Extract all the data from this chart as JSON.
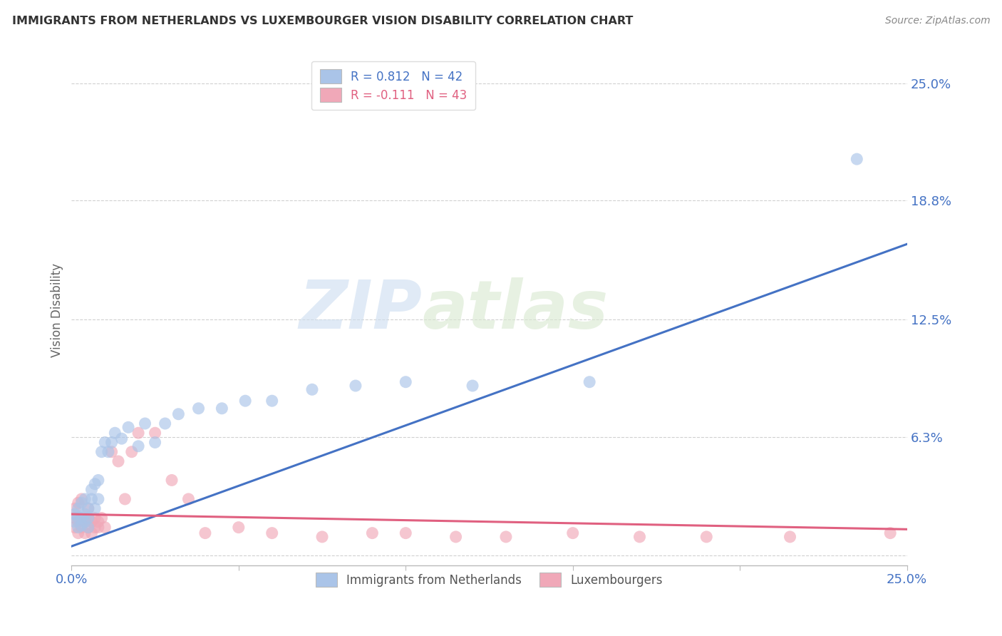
{
  "title": "IMMIGRANTS FROM NETHERLANDS VS LUXEMBOURGER VISION DISABILITY CORRELATION CHART",
  "source": "Source: ZipAtlas.com",
  "ylabel": "Vision Disability",
  "xlim": [
    0.0,
    0.25
  ],
  "ylim": [
    -0.005,
    0.265
  ],
  "legend_r1": "R = 0.812   N = 42",
  "legend_r2": "R = -0.111   N = 43",
  "legend_label1": "Immigrants from Netherlands",
  "legend_label2": "Luxembourgers",
  "blue_color": "#aac4e8",
  "pink_color": "#f0a8b8",
  "blue_line_color": "#4472c4",
  "pink_line_color": "#e06080",
  "watermark_zip": "ZIP",
  "watermark_atlas": "atlas",
  "blue_line_x0": 0.0,
  "blue_line_y0": 0.005,
  "blue_line_x1": 0.25,
  "blue_line_y1": 0.165,
  "pink_line_x0": 0.0,
  "pink_line_y0": 0.022,
  "pink_line_x1": 0.25,
  "pink_line_y1": 0.014,
  "blue_scatter_x": [
    0.001,
    0.001,
    0.002,
    0.002,
    0.002,
    0.003,
    0.003,
    0.003,
    0.004,
    0.004,
    0.004,
    0.005,
    0.005,
    0.005,
    0.006,
    0.006,
    0.007,
    0.007,
    0.008,
    0.008,
    0.009,
    0.01,
    0.011,
    0.012,
    0.013,
    0.015,
    0.017,
    0.02,
    0.022,
    0.025,
    0.028,
    0.032,
    0.038,
    0.045,
    0.052,
    0.06,
    0.072,
    0.085,
    0.1,
    0.12,
    0.155,
    0.235
  ],
  "blue_scatter_y": [
    0.018,
    0.022,
    0.015,
    0.02,
    0.025,
    0.016,
    0.02,
    0.028,
    0.018,
    0.022,
    0.03,
    0.015,
    0.02,
    0.025,
    0.03,
    0.035,
    0.025,
    0.038,
    0.03,
    0.04,
    0.055,
    0.06,
    0.055,
    0.06,
    0.065,
    0.062,
    0.068,
    0.058,
    0.07,
    0.06,
    0.07,
    0.075,
    0.078,
    0.078,
    0.082,
    0.082,
    0.088,
    0.09,
    0.092,
    0.09,
    0.092,
    0.21
  ],
  "pink_scatter_x": [
    0.001,
    0.001,
    0.001,
    0.002,
    0.002,
    0.002,
    0.003,
    0.003,
    0.003,
    0.004,
    0.004,
    0.005,
    0.005,
    0.005,
    0.006,
    0.006,
    0.007,
    0.007,
    0.008,
    0.008,
    0.009,
    0.01,
    0.012,
    0.014,
    0.016,
    0.018,
    0.02,
    0.025,
    0.03,
    0.035,
    0.04,
    0.05,
    0.06,
    0.075,
    0.09,
    0.1,
    0.115,
    0.13,
    0.15,
    0.17,
    0.19,
    0.215,
    0.245
  ],
  "pink_scatter_y": [
    0.015,
    0.02,
    0.025,
    0.012,
    0.018,
    0.028,
    0.015,
    0.02,
    0.03,
    0.012,
    0.018,
    0.015,
    0.02,
    0.025,
    0.012,
    0.018,
    0.015,
    0.02,
    0.015,
    0.018,
    0.02,
    0.015,
    0.055,
    0.05,
    0.03,
    0.055,
    0.065,
    0.065,
    0.04,
    0.03,
    0.012,
    0.015,
    0.012,
    0.01,
    0.012,
    0.012,
    0.01,
    0.01,
    0.012,
    0.01,
    0.01,
    0.01,
    0.012
  ]
}
